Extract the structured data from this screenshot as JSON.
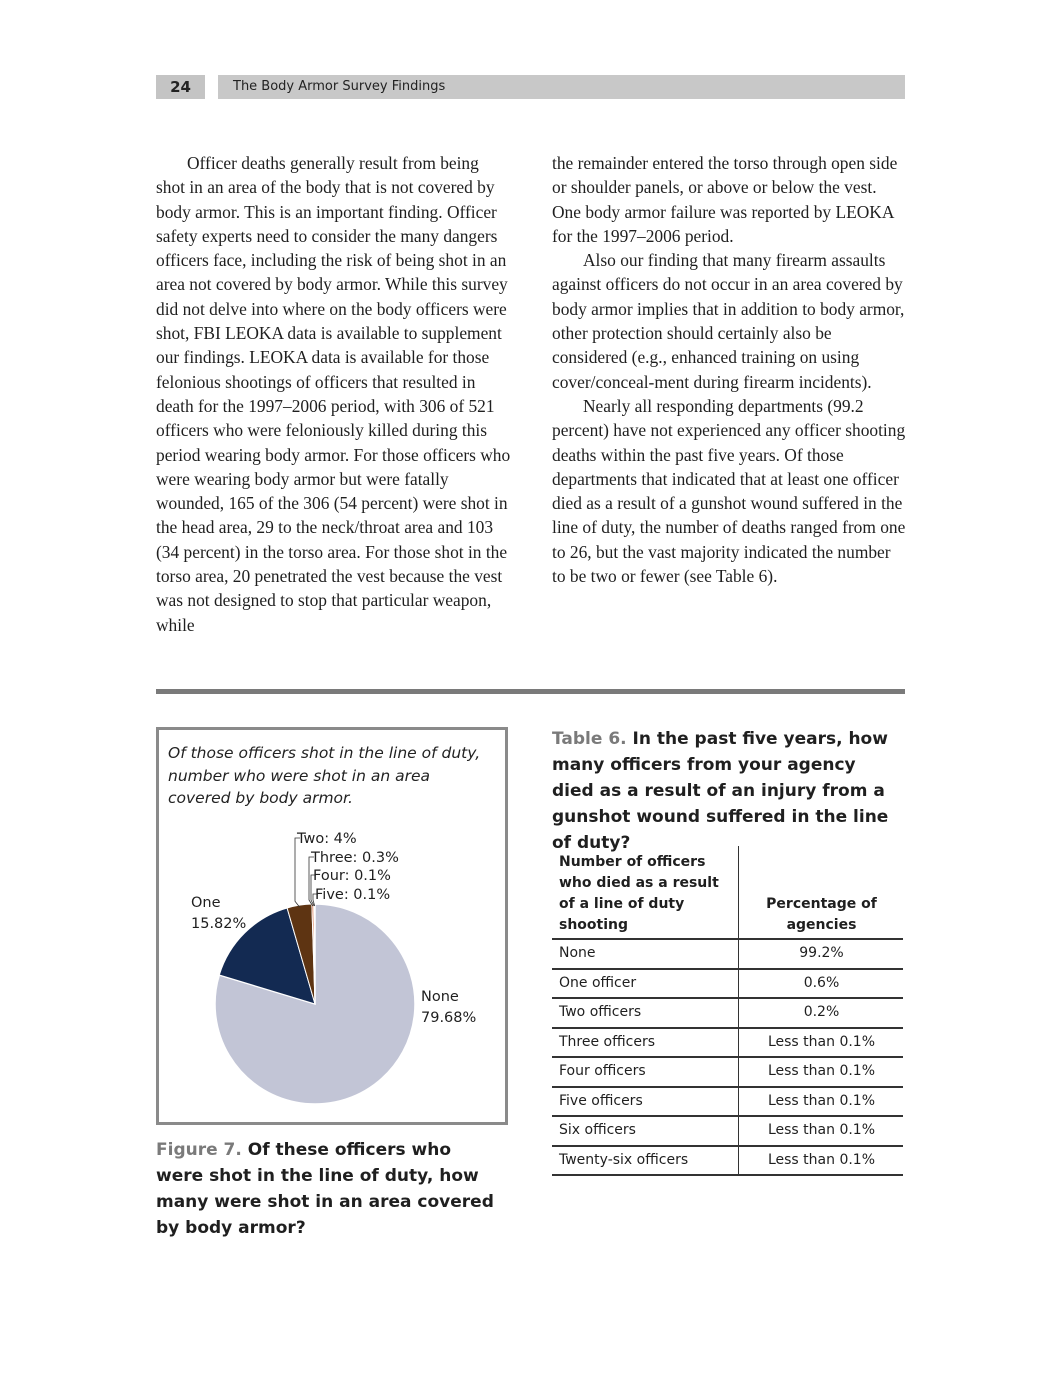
{
  "header": {
    "page_number": "24",
    "title": "The Body Armor Survey Findings"
  },
  "body_text": {
    "left": [
      "Officer deaths generally result from being shot in an area of the body that is not covered by body armor. This is an important finding. Officer safety experts need to consider the many dangers officers face, including the risk of being shot in an area not covered by body armor. While this survey did not delve into where on the body officers were shot, FBI LEOKA data is available to supplement our findings. LEOKA data is available for those felonious shootings of officers that resulted in death for the 1997–2006 period, with 306 of 521 officers who were feloniously killed during this period wearing body armor. For those officers who were wearing body armor but were fatally wounded, 165 of the 306 (54 percent) were shot in the head area, 29 to the neck/throat area and 103 (34 percent) in the torso area. For those shot in the torso area, 20 penetrated the vest because the vest was not designed to stop that particular weapon, while"
    ],
    "right": [
      "the remainder entered the torso through open side or shoulder panels, or above or below the vest. One body armor failure was reported by LEOKA for the 1997–2006 period.",
      "Also our finding that many firearm assaults against officers do not occur in an area covered by body armor implies that in addition to body armor, other protection should certainly also be considered (e.g., enhanced training on using cover/conceal-ment during firearm incidents).",
      "Nearly all responding departments (99.2 percent) have not experienced any officer shooting deaths within the past five years. Of those departments that indicated that at least one officer died as a result of a gunshot wound suffered in the line of duty, the number of deaths ranged from one to 26, but the vast majority indicated the number to be two or fewer (see Table 6)."
    ]
  },
  "figure": {
    "inner_caption": "Of those officers shot in the line of duty, number who were shot in an area covered by body armor.",
    "label": "Figure 7.",
    "caption": "Of these officers who were shot in the line of duty, how many were shot in an area covered by body armor?"
  },
  "chart_data": {
    "type": "pie",
    "title": "Of those officers shot in the line of duty, number who were shot in an area covered by body armor.",
    "slices": [
      {
        "name": "None",
        "value": 79.68,
        "label_text": "None",
        "pct_text": "79.68%",
        "color": "#c2c5d6"
      },
      {
        "name": "One",
        "value": 15.82,
        "label_text": "One",
        "pct_text": "15.82%",
        "color": "#132a52"
      },
      {
        "name": "Two",
        "value": 4.0,
        "label_text": "Two: 4%",
        "color": "#5e3412"
      },
      {
        "name": "Three",
        "value": 0.3,
        "label_text": "Three: 0.3%",
        "color": "#d9693a"
      },
      {
        "name": "Four",
        "value": 0.1,
        "label_text": "Four: 0.1%",
        "color": "#8a3a1a"
      },
      {
        "name": "Five",
        "value": 0.1,
        "label_text": "Five: 0.1%",
        "color": "#b04a20"
      }
    ]
  },
  "table": {
    "label": "Table 6.",
    "caption": "In the past five years, how many officers from your agency died as a result of an injury from a gunshot wound suffered in the line of duty?",
    "headers": [
      "Number of officers who died as a result of a line of duty shooting",
      "Percentage of agencies"
    ],
    "rows": [
      [
        "None",
        "99.2%"
      ],
      [
        "One officer",
        "0.6%"
      ],
      [
        "Two officers",
        "0.2%"
      ],
      [
        "Three officers",
        "Less than 0.1%"
      ],
      [
        "Four officers",
        "Less than 0.1%"
      ],
      [
        "Five officers",
        "Less than 0.1%"
      ],
      [
        "Six officers",
        "Less than 0.1%"
      ],
      [
        "Twenty-six officers",
        "Less than 0.1%"
      ]
    ]
  }
}
